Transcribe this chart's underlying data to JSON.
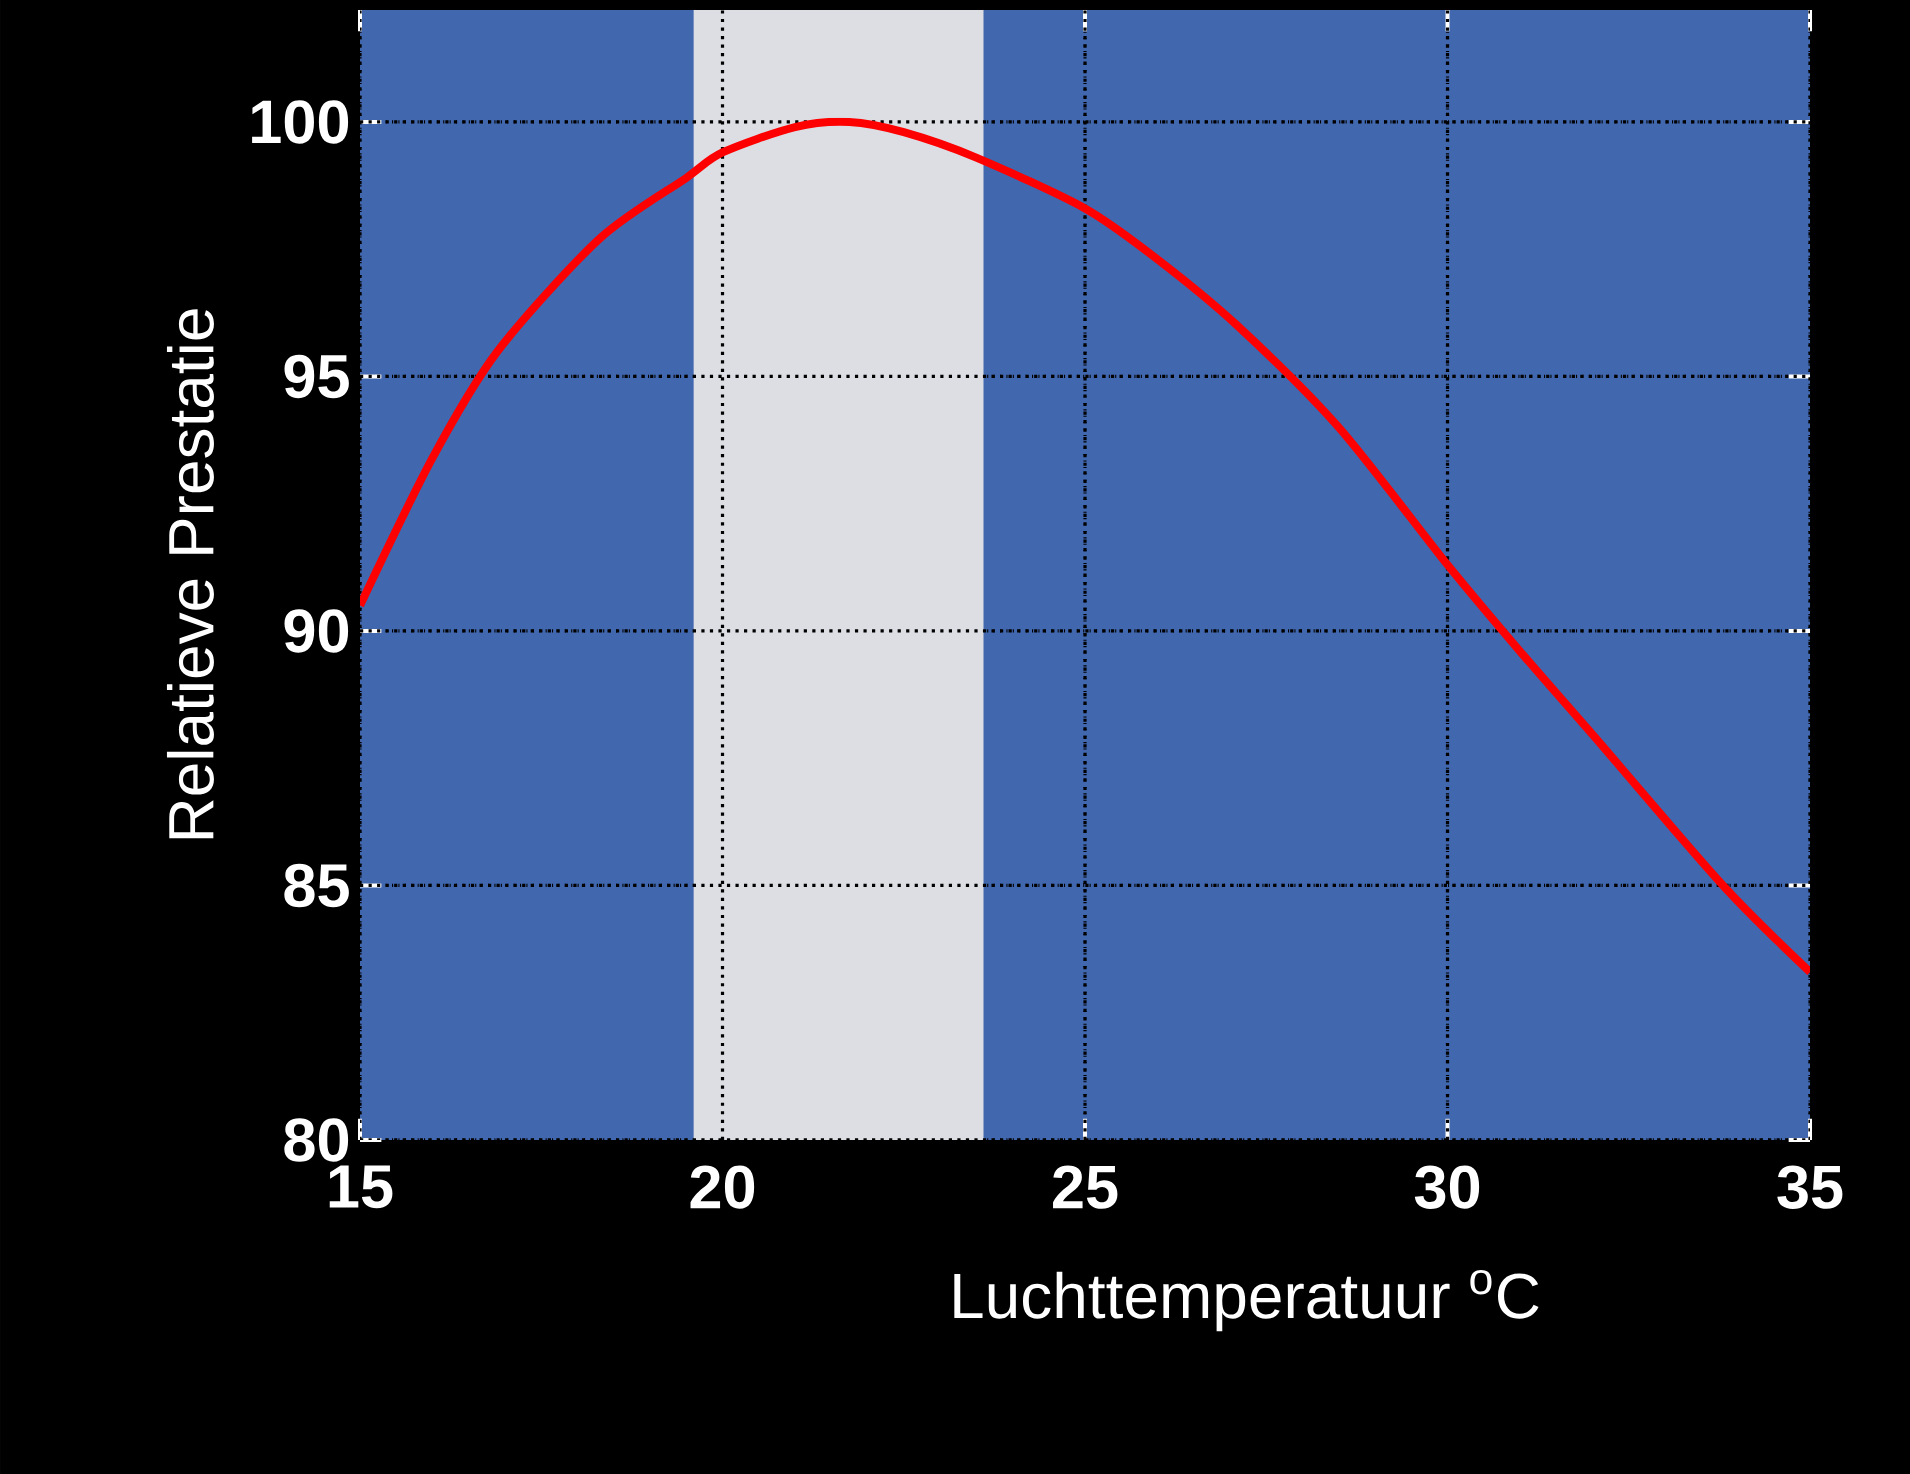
{
  "chart_data": {
    "type": "line",
    "xlabel": "Luchttemperatuur $^{o}$C",
    "ylabel": "Relatieve Prestatie",
    "x": [
      15,
      16,
      16.9,
      18.3,
      19.5,
      20,
      21,
      21.75,
      22.5,
      23.5,
      25,
      26,
      27.1,
      28.5,
      30,
      31,
      32.1,
      33.8,
      35
    ],
    "series": [
      {
        "color": "#ff0000",
        "values": [
          90.5,
          93.4,
          95.5,
          97.7,
          98.9,
          99.4,
          99.9,
          100,
          99.8,
          99.3,
          98.3,
          97.3,
          96.0,
          94.0,
          91.3,
          89.6,
          87.8,
          85.0,
          83.3
        ]
      }
    ],
    "xlim": [
      15,
      35
    ],
    "ylim": [
      80,
      102.2
    ],
    "xticks": [
      15,
      20,
      25,
      30,
      35
    ],
    "yticks": [
      80,
      85,
      90,
      95,
      100
    ],
    "grid": true,
    "line_style": "solid",
    "marker": "none",
    "bands": [
      {
        "axis": "x",
        "from": 19.6,
        "to": 23.6,
        "color": "#dcdee4"
      }
    ]
  }
}
